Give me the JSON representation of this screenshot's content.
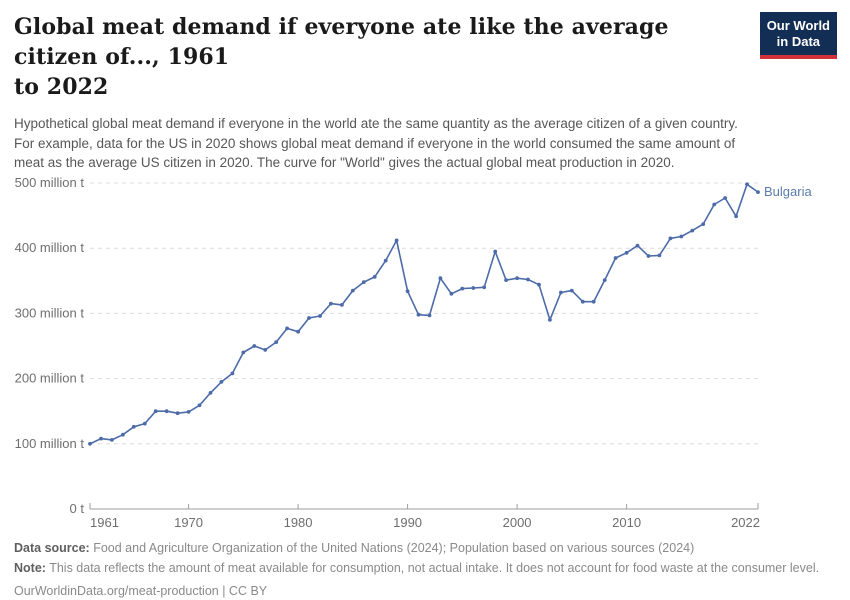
{
  "header": {
    "title_lines": [
      "Global meat demand if everyone ate like the average citizen of..., 1961",
      "to 2022"
    ],
    "logo": {
      "line1": "Our World",
      "line2": "in Data"
    }
  },
  "subtitle_lines": [
    "Hypothetical global meat demand if everyone in the world ate the same quantity as the average citizen of a given country.",
    "For example, data for the US in 2020 shows global meat demand if everyone in the world consumed the same amount of",
    "meat as the average US citizen in 2020. The curve for \"World\" gives the actual global meat production in 2020."
  ],
  "chart_data": {
    "type": "line",
    "title": "Global meat demand if everyone ate like the average citizen of..., 1961 to 2022",
    "entity_label": "Bulgaria",
    "unit": "million t",
    "xlabel": "",
    "ylabel": "",
    "xlim": [
      1961,
      2022
    ],
    "ylim": [
      0,
      500
    ],
    "grid": "horizontal-dashed",
    "legend_position": "end-of-line-label",
    "y_ticks": {
      "values": [
        0,
        100,
        200,
        300,
        400,
        500
      ],
      "labels": [
        "0 t",
        "100 million t",
        "200 million t",
        "300 million t",
        "400 million t",
        "500 million t"
      ]
    },
    "x_ticks": {
      "values": [
        1961,
        1970,
        1980,
        1990,
        2000,
        2010,
        2022
      ],
      "labels": [
        "1961",
        "1970",
        "1980",
        "1990",
        "2000",
        "2010",
        "2022"
      ]
    },
    "years": [
      1961,
      1962,
      1963,
      1964,
      1965,
      1966,
      1967,
      1968,
      1969,
      1970,
      1971,
      1972,
      1973,
      1974,
      1975,
      1976,
      1977,
      1978,
      1979,
      1980,
      1981,
      1982,
      1983,
      1984,
      1985,
      1986,
      1987,
      1988,
      1989,
      1990,
      1991,
      1992,
      1993,
      1994,
      1995,
      1996,
      1997,
      1998,
      1999,
      2000,
      2001,
      2002,
      2003,
      2004,
      2005,
      2006,
      2007,
      2008,
      2009,
      2010,
      2011,
      2012,
      2013,
      2014,
      2015,
      2016,
      2017,
      2018,
      2019,
      2020,
      2021,
      2022
    ],
    "series": [
      {
        "name": "Bulgaria",
        "values": [
          100,
          108,
          106,
          114,
          126,
          131,
          150,
          150,
          147,
          149,
          159,
          178,
          195,
          208,
          240,
          250,
          244,
          256,
          277,
          272,
          293,
          296,
          315,
          313,
          335,
          348,
          356,
          381,
          412,
          334,
          298,
          297,
          354,
          330,
          338,
          339,
          340,
          395,
          351,
          354,
          352,
          344,
          290,
          332,
          335,
          318,
          318,
          351,
          385,
          393,
          404,
          388,
          389,
          415,
          418,
          427,
          437,
          467,
          477,
          449,
          498,
          486
        ]
      }
    ]
  },
  "footer": {
    "datasource_label": "Data source:",
    "datasource_text": " Food and Agriculture Organization of the United Nations (2024); Population based on various sources (2024)",
    "note_label": "Note:",
    "note_text": " This data reflects the amount of meat available for consumption, not actual intake. It does not account for food waste at the consumer level.",
    "citation": "OurWorldinData.org/meat-production | CC BY"
  },
  "colors": {
    "line": "#4c6ba8",
    "entity_label": "#5a7cad",
    "grid": "#dcdcdc",
    "axis": "#9e9e9e",
    "tick_text": "#6e6e6e",
    "title_text": "#1a1a1a",
    "logo_bg": "#132e54",
    "logo_red": "#d13239"
  }
}
